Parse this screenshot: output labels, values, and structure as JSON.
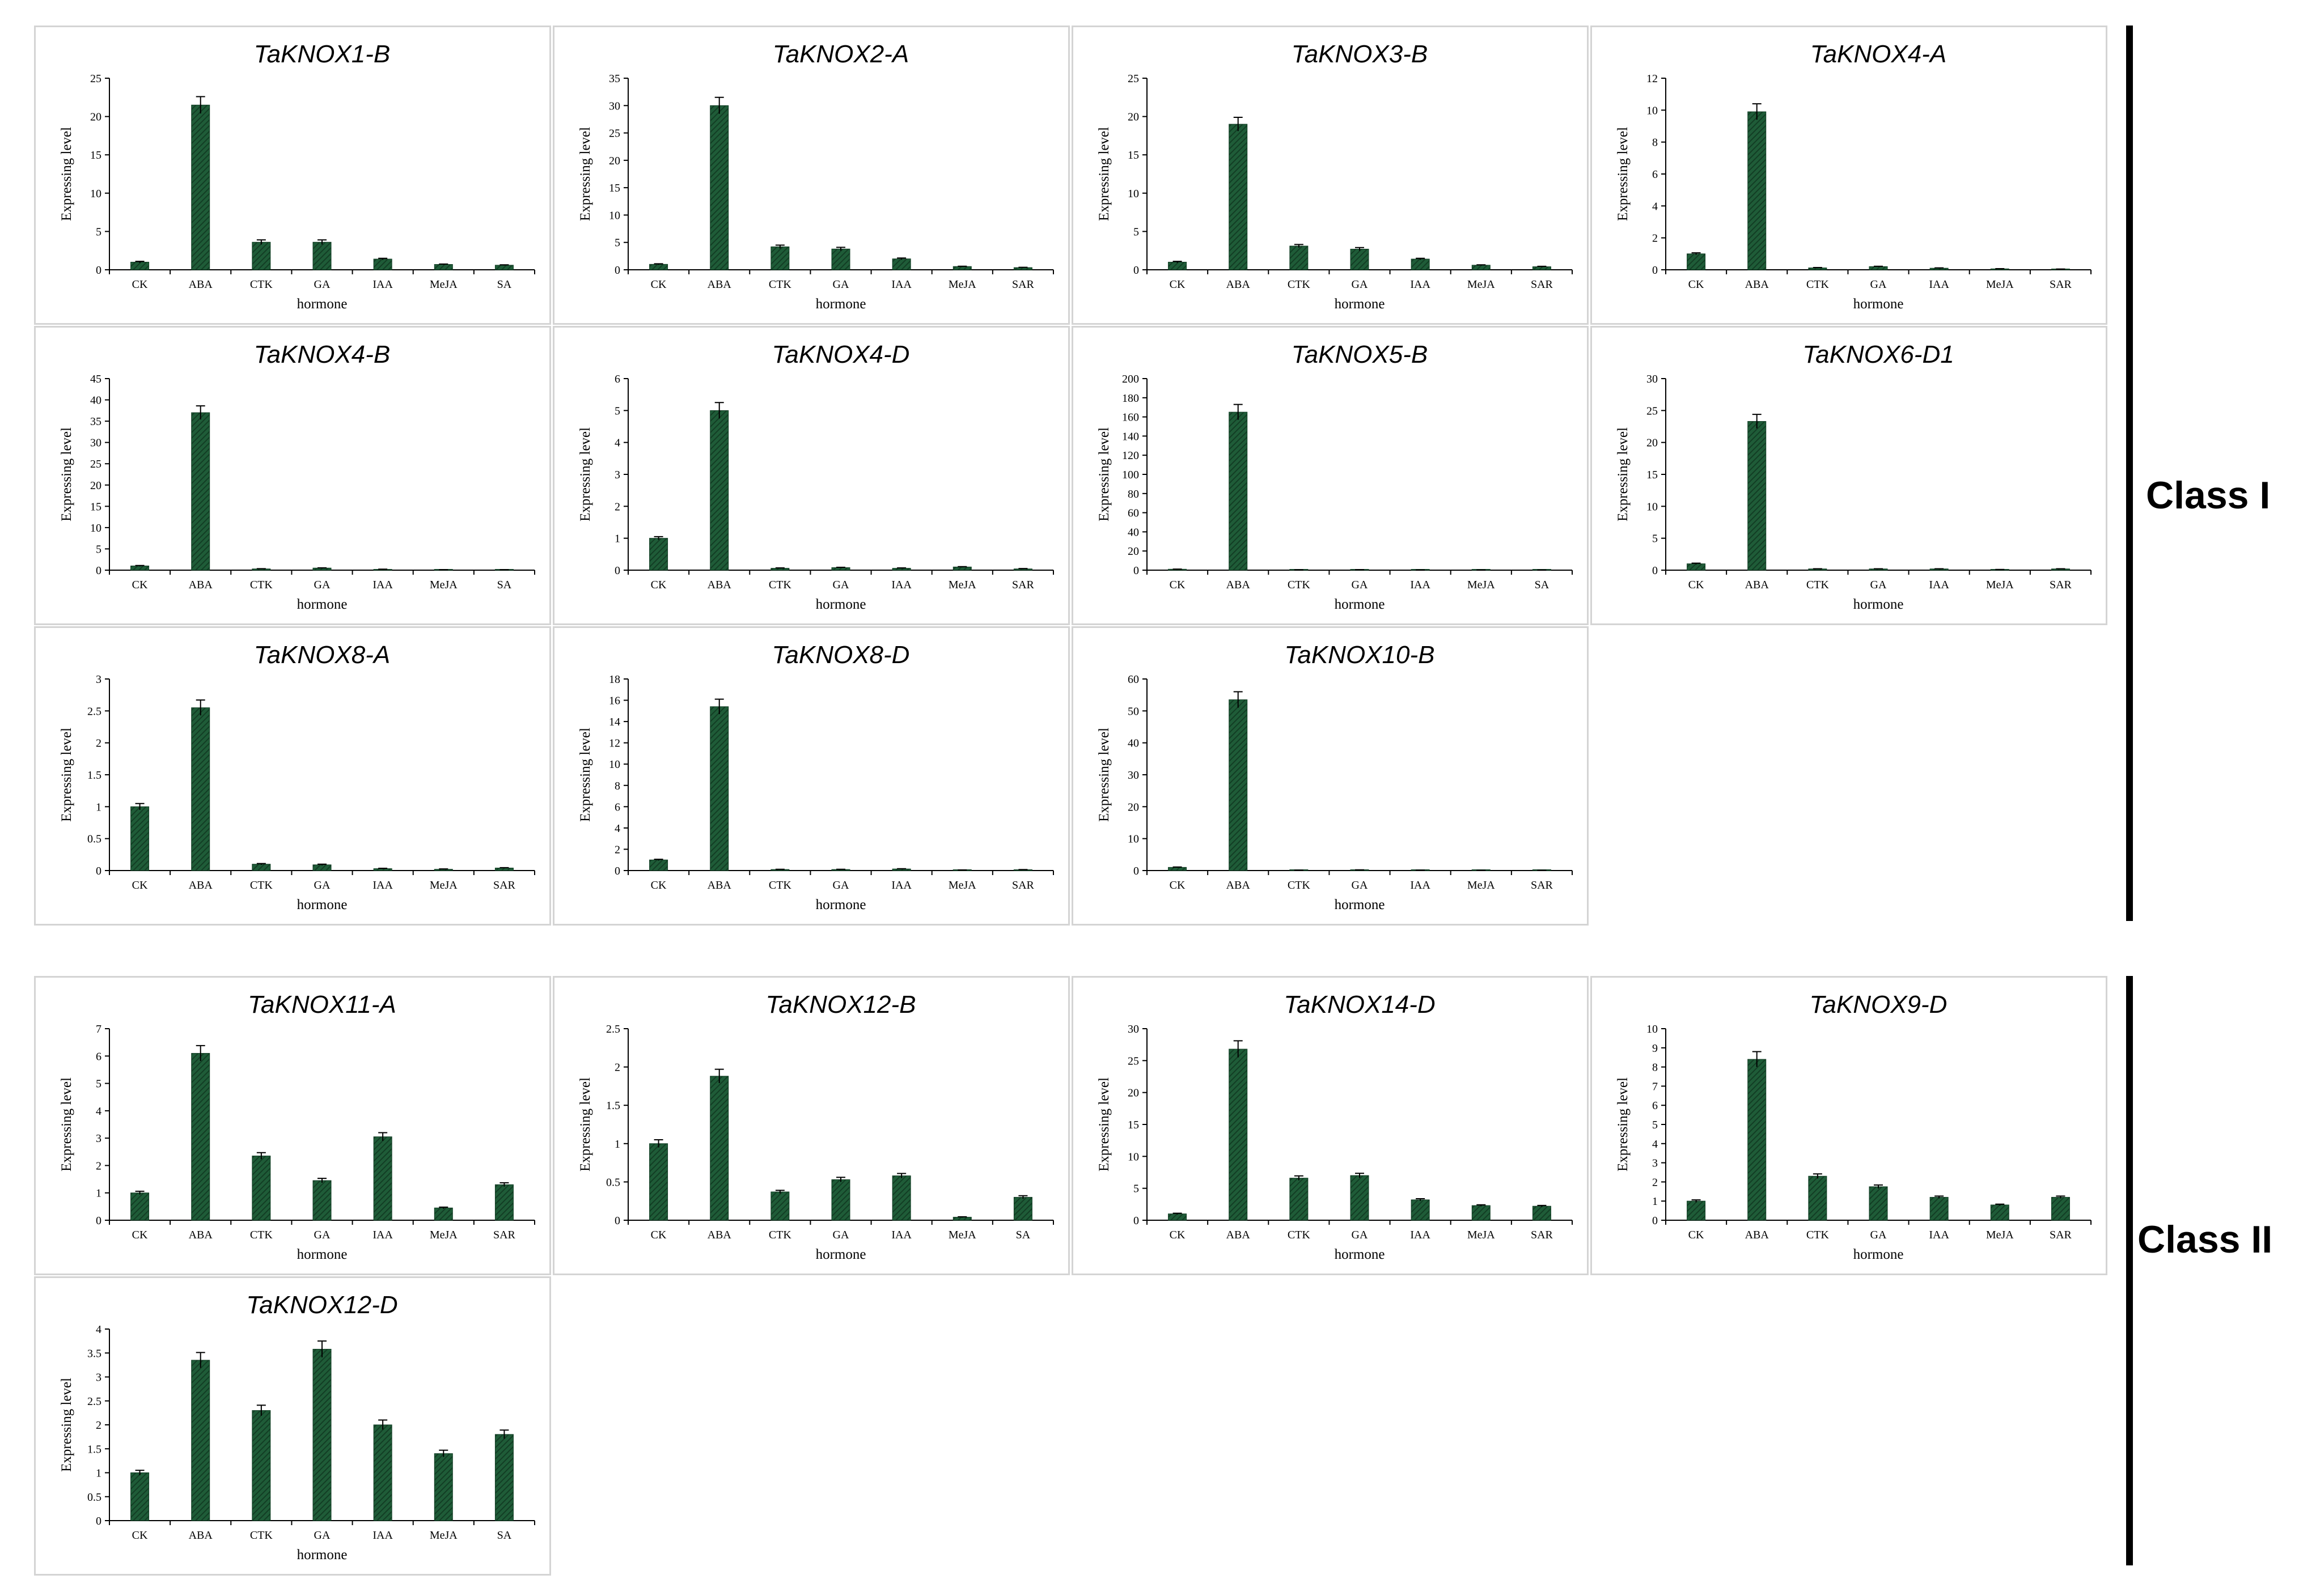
{
  "colors": {
    "bar": "#1f5c38",
    "bar_dark": "#123d24",
    "axis": "#000000",
    "panel_border": "#d4d4d4"
  },
  "class_labels": {
    "class1": "Class I",
    "class2": "Class II"
  },
  "chart_data": [
    {
      "type": "bar",
      "title": "TaKNOX1-B",
      "xlabel": "hormone",
      "ylabel": "Expressing level",
      "ylim": [
        0,
        25
      ],
      "yticks": [
        0,
        5,
        10,
        15,
        20,
        25
      ],
      "categories": [
        "CK",
        "ABA",
        "CTK",
        "GA",
        "IAA",
        "MeJA",
        "SA"
      ],
      "values": [
        1,
        21.5,
        3.6,
        3.6,
        1.4,
        0.7,
        0.6
      ],
      "errors": [
        0.1,
        1.1,
        0.3,
        0.3,
        0.1,
        0.05,
        0.05
      ]
    },
    {
      "type": "bar",
      "title": "TaKNOX2-A",
      "xlabel": "hormone",
      "ylabel": "Expressing level",
      "ylim": [
        0,
        35
      ],
      "yticks": [
        0,
        5,
        10,
        15,
        20,
        25,
        30,
        35
      ],
      "categories": [
        "CK",
        "ABA",
        "CTK",
        "GA",
        "IAA",
        "MeJA",
        "SAR"
      ],
      "values": [
        1,
        30,
        4.2,
        3.8,
        2,
        0.6,
        0.4
      ],
      "errors": [
        0.1,
        1.5,
        0.3,
        0.3,
        0.15,
        0.05,
        0.05
      ]
    },
    {
      "type": "bar",
      "title": "TaKNOX3-B",
      "xlabel": "hormone",
      "ylabel": "Expressing level",
      "ylim": [
        0,
        25
      ],
      "yticks": [
        0,
        5,
        10,
        15,
        20,
        25
      ],
      "categories": [
        "CK",
        "ABA",
        "CTK",
        "GA",
        "IAA",
        "MeJA",
        "SAR"
      ],
      "values": [
        1,
        19,
        3.1,
        2.7,
        1.4,
        0.6,
        0.4
      ],
      "errors": [
        0.1,
        0.9,
        0.2,
        0.2,
        0.1,
        0.05,
        0.05
      ]
    },
    {
      "type": "bar",
      "title": "TaKNOX4-A",
      "xlabel": "hormone",
      "ylabel": "Expressing level",
      "ylim": [
        0,
        12
      ],
      "yticks": [
        0,
        2,
        4,
        6,
        8,
        10,
        12
      ],
      "categories": [
        "CK",
        "ABA",
        "CTK",
        "GA",
        "IAA",
        "MeJA",
        "SAR"
      ],
      "values": [
        1,
        9.9,
        0.12,
        0.2,
        0.1,
        0.06,
        0.04
      ],
      "errors": [
        0.06,
        0.5,
        0.02,
        0.02,
        0.02,
        0.01,
        0.01
      ]
    },
    {
      "type": "bar",
      "title": "TaKNOX4-B",
      "xlabel": "hormone",
      "ylabel": "Expressing level",
      "ylim": [
        0,
        45
      ],
      "yticks": [
        0,
        5,
        10,
        15,
        20,
        25,
        30,
        35,
        40,
        45
      ],
      "categories": [
        "CK",
        "ABA",
        "CTK",
        "GA",
        "IAA",
        "MeJA",
        "SA"
      ],
      "values": [
        1,
        37,
        0.3,
        0.5,
        0.2,
        0.1,
        0.1
      ],
      "errors": [
        0.1,
        1.6,
        0.05,
        0.05,
        0.03,
        0.02,
        0.02
      ]
    },
    {
      "type": "bar",
      "title": "TaKNOX4-D",
      "xlabel": "hormone",
      "ylabel": "Expressing level",
      "ylim": [
        0,
        6
      ],
      "yticks": [
        0,
        1,
        2,
        3,
        4,
        5,
        6
      ],
      "categories": [
        "CK",
        "ABA",
        "CTK",
        "GA",
        "IAA",
        "MeJA",
        "SAR"
      ],
      "values": [
        1,
        5,
        0.06,
        0.08,
        0.06,
        0.1,
        0.04
      ],
      "errors": [
        0.05,
        0.25,
        0.01,
        0.01,
        0.01,
        0.01,
        0.01
      ]
    },
    {
      "type": "bar",
      "title": "TaKNOX5-B",
      "xlabel": "hormone",
      "ylabel": "Expressing level",
      "ylim": [
        0,
        200
      ],
      "yticks": [
        0,
        20,
        40,
        60,
        80,
        100,
        120,
        140,
        160,
        180,
        200
      ],
      "categories": [
        "CK",
        "ABA",
        "CTK",
        "GA",
        "IAA",
        "MeJA",
        "SA"
      ],
      "values": [
        1,
        165,
        0.3,
        0.5,
        0.2,
        0.2,
        0.1
      ],
      "errors": [
        0.1,
        8,
        0.05,
        0.05,
        0.03,
        0.03,
        0.02
      ]
    },
    {
      "type": "bar",
      "title": "TaKNOX6-D1",
      "xlabel": "hormone",
      "ylabel": "Expressing level",
      "ylim": [
        0,
        30
      ],
      "yticks": [
        0,
        5,
        10,
        15,
        20,
        25,
        30
      ],
      "categories": [
        "CK",
        "ABA",
        "CTK",
        "GA",
        "IAA",
        "MeJA",
        "SAR"
      ],
      "values": [
        1,
        23.3,
        0.2,
        0.2,
        0.2,
        0.1,
        0.2
      ],
      "errors": [
        0.1,
        1.1,
        0.02,
        0.02,
        0.02,
        0.01,
        0.02
      ]
    },
    {
      "type": "bar",
      "title": "TaKNOX8-A",
      "xlabel": "hormone",
      "ylabel": "Expressing level",
      "ylim": [
        0,
        3
      ],
      "yticks": [
        0,
        0.5,
        1,
        1.5,
        2,
        2.5,
        3
      ],
      "categories": [
        "CK",
        "ABA",
        "CTK",
        "GA",
        "IAA",
        "MeJA",
        "SAR"
      ],
      "values": [
        1,
        2.55,
        0.1,
        0.09,
        0.03,
        0.02,
        0.04
      ],
      "errors": [
        0.05,
        0.12,
        0.01,
        0.01,
        0.005,
        0.005,
        0.005
      ]
    },
    {
      "type": "bar",
      "title": "TaKNOX8-D",
      "xlabel": "hormone",
      "ylabel": "Expressing level",
      "ylim": [
        0,
        18
      ],
      "yticks": [
        0,
        2,
        4,
        6,
        8,
        10,
        12,
        14,
        16,
        18
      ],
      "categories": [
        "CK",
        "ABA",
        "CTK",
        "GA",
        "IAA",
        "MeJA",
        "SAR"
      ],
      "values": [
        1,
        15.4,
        0.1,
        0.1,
        0.15,
        0.05,
        0.08
      ],
      "errors": [
        0.06,
        0.7,
        0.02,
        0.02,
        0.02,
        0.01,
        0.01
      ]
    },
    {
      "type": "bar",
      "title": "TaKNOX10-B",
      "xlabel": "hormone",
      "ylabel": "Expressing level",
      "ylim": [
        0,
        60
      ],
      "yticks": [
        0,
        10,
        20,
        30,
        40,
        50,
        60
      ],
      "categories": [
        "CK",
        "ABA",
        "CTK",
        "GA",
        "IAA",
        "MeJA",
        "SAR"
      ],
      "values": [
        1,
        53.5,
        0.1,
        0.2,
        0.1,
        0.05,
        0.05
      ],
      "errors": [
        0.1,
        2.5,
        0.02,
        0.03,
        0.02,
        0.01,
        0.01
      ]
    },
    {
      "type": "bar",
      "title": "TaKNOX11-A",
      "xlabel": "hormone",
      "ylabel": "Expressing level",
      "ylim": [
        0,
        7
      ],
      "yticks": [
        0,
        1,
        2,
        3,
        4,
        5,
        6,
        7
      ],
      "categories": [
        "CK",
        "ABA",
        "CTK",
        "GA",
        "IAA",
        "MeJA",
        "SAR"
      ],
      "values": [
        1,
        6.1,
        2.35,
        1.45,
        3.05,
        0.45,
        1.3
      ],
      "errors": [
        0.06,
        0.28,
        0.12,
        0.08,
        0.15,
        0.03,
        0.07
      ]
    },
    {
      "type": "bar",
      "title": "TaKNOX12-B",
      "xlabel": "hormone",
      "ylabel": "Expressing level",
      "ylim": [
        0,
        2.5
      ],
      "yticks": [
        0,
        0.5,
        1,
        1.5,
        2,
        2.5
      ],
      "categories": [
        "CK",
        "ABA",
        "CTK",
        "GA",
        "IAA",
        "MeJA",
        "SA"
      ],
      "values": [
        1,
        1.88,
        0.37,
        0.53,
        0.58,
        0.04,
        0.3
      ],
      "errors": [
        0.05,
        0.09,
        0.02,
        0.03,
        0.03,
        0.005,
        0.02
      ]
    },
    {
      "type": "bar",
      "title": "TaKNOX14-D",
      "xlabel": "hormone",
      "ylabel": "Expressing level",
      "ylim": [
        0,
        30
      ],
      "yticks": [
        0,
        5,
        10,
        15,
        20,
        25,
        30
      ],
      "categories": [
        "CK",
        "ABA",
        "CTK",
        "GA",
        "IAA",
        "MeJA",
        "SAR"
      ],
      "values": [
        1,
        26.8,
        6.6,
        7,
        3.2,
        2.3,
        2.2
      ],
      "errors": [
        0.1,
        1.3,
        0.35,
        0.35,
        0.17,
        0.12,
        0.12
      ]
    },
    {
      "type": "bar",
      "title": "TaKNOX9-D",
      "xlabel": "hormone",
      "ylabel": "Expressing level",
      "ylim": [
        0,
        10
      ],
      "yticks": [
        0,
        1,
        2,
        3,
        4,
        5,
        6,
        7,
        8,
        9,
        10
      ],
      "categories": [
        "CK",
        "ABA",
        "CTK",
        "GA",
        "IAA",
        "MeJA",
        "SAR"
      ],
      "values": [
        1,
        8.4,
        2.3,
        1.75,
        1.2,
        0.8,
        1.2
      ],
      "errors": [
        0.06,
        0.4,
        0.12,
        0.09,
        0.06,
        0.04,
        0.06
      ]
    },
    {
      "type": "bar",
      "title": "TaKNOX12-D",
      "xlabel": "hormone",
      "ylabel": "Expressing level",
      "ylim": [
        0,
        4
      ],
      "yticks": [
        0,
        0.5,
        1,
        1.5,
        2,
        2.5,
        3,
        3.5,
        4
      ],
      "categories": [
        "CK",
        "ABA",
        "CTK",
        "GA",
        "IAA",
        "MeJA",
        "SA"
      ],
      "values": [
        1,
        3.35,
        2.3,
        3.58,
        2,
        1.4,
        1.8
      ],
      "errors": [
        0.05,
        0.16,
        0.11,
        0.17,
        0.1,
        0.07,
        0.09
      ]
    }
  ]
}
